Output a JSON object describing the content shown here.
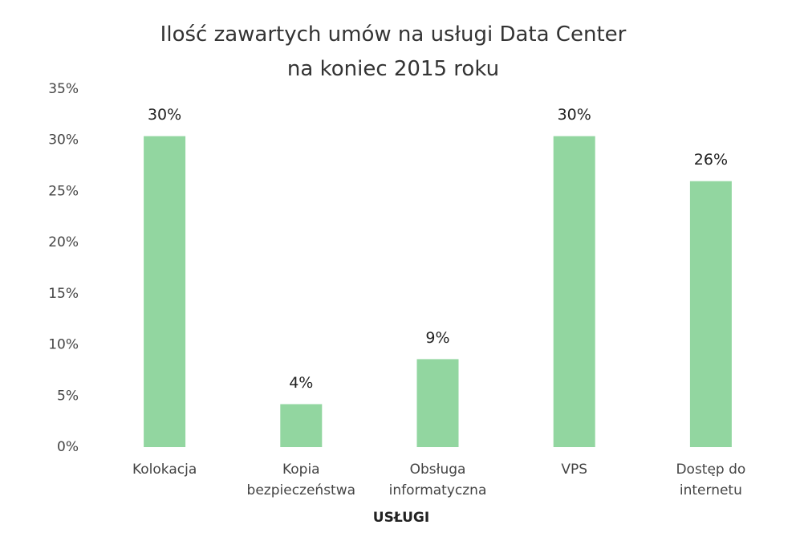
{
  "chart_data": {
    "type": "bar",
    "title": "Ilość zawartych umów na usługi Data Center\nna koniec 2015 roku",
    "categories": [
      "Kolokacja",
      "Kopia\nbezpieczeństwa",
      "Obsługa\ninformatyczna",
      "VPS",
      "Dostęp do\ninternetu"
    ],
    "values": [
      30.4,
      4.2,
      8.6,
      30.4,
      26.0
    ],
    "value_labels": [
      "30%",
      "4%",
      "9%",
      "30%",
      "26%"
    ],
    "color": "#92d6a0",
    "x_label": "USŁUGI",
    "ylim": [
      0,
      35
    ],
    "yticks": [
      {
        "value": 0,
        "label": "0%"
      },
      {
        "value": 5,
        "label": "5%"
      },
      {
        "value": 10,
        "label": "10%"
      },
      {
        "value": 15,
        "label": "15%"
      },
      {
        "value": 20,
        "label": "20%"
      },
      {
        "value": 25,
        "label": "25%"
      },
      {
        "value": 30,
        "label": "30%"
      },
      {
        "value": 35,
        "label": "35%"
      }
    ],
    "grid": false
  }
}
